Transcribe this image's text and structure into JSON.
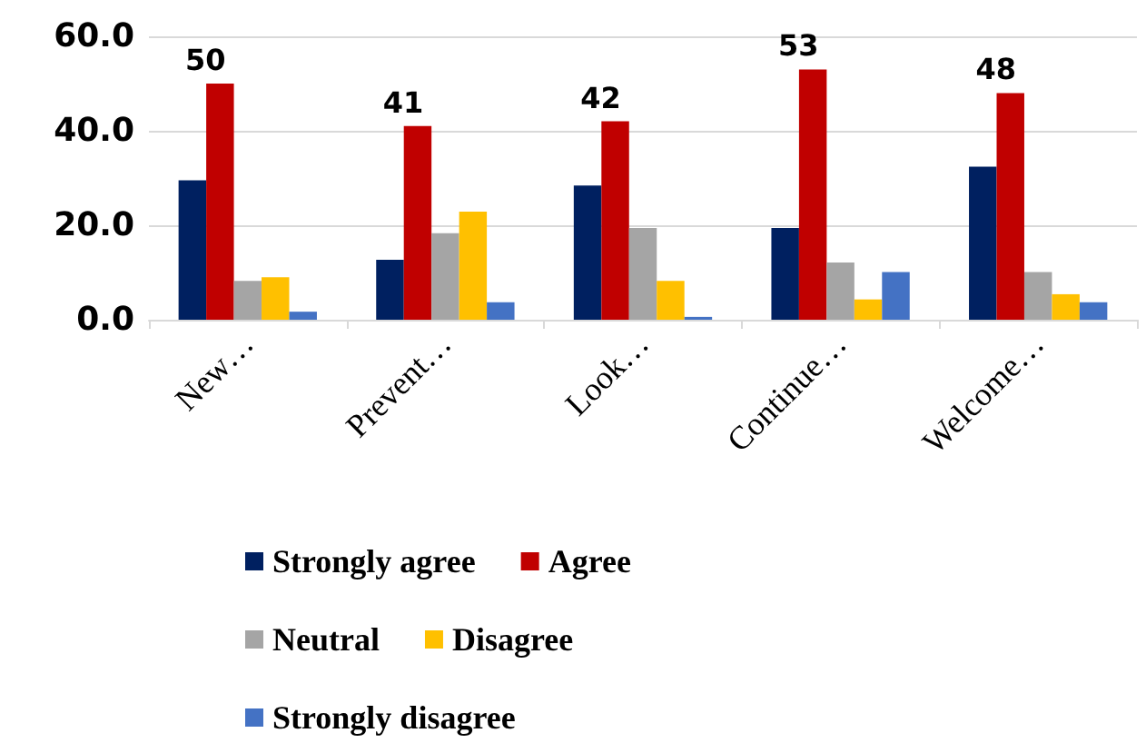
{
  "chart_data": {
    "type": "bar",
    "categories": [
      "New…",
      "Prevent…",
      "Look…",
      "Continue…",
      "Welcome…"
    ],
    "series": [
      {
        "name": "Strongly agree",
        "color": "#002060",
        "values": [
          29.5,
          12.7,
          28.4,
          19.4,
          32.4
        ]
      },
      {
        "name": "Agree",
        "color": "#c00000",
        "values": [
          50,
          41,
          42,
          53,
          48
        ],
        "value_labels": [
          "50",
          "41",
          "42",
          "53",
          "48"
        ]
      },
      {
        "name": "Neutral",
        "color": "#a5a5a5",
        "values": [
          8.2,
          18.3,
          19.4,
          12.1,
          10.1
        ]
      },
      {
        "name": "Disagree",
        "color": "#ffc000",
        "values": [
          9.0,
          22.9,
          8.2,
          4.3,
          5.4
        ]
      },
      {
        "name": "Strongly disagree",
        "color": "#4472c4",
        "values": [
          1.7,
          3.7,
          0.6,
          10.1,
          3.7
        ]
      }
    ],
    "ylim": [
      0,
      60
    ],
    "yticks": [
      {
        "value": 0,
        "label": "0.0"
      },
      {
        "value": 20,
        "label": "20.0"
      },
      {
        "value": 40,
        "label": "40.0"
      },
      {
        "value": 60,
        "label": "60.0"
      }
    ],
    "grid": "y",
    "legend": "bottom"
  }
}
